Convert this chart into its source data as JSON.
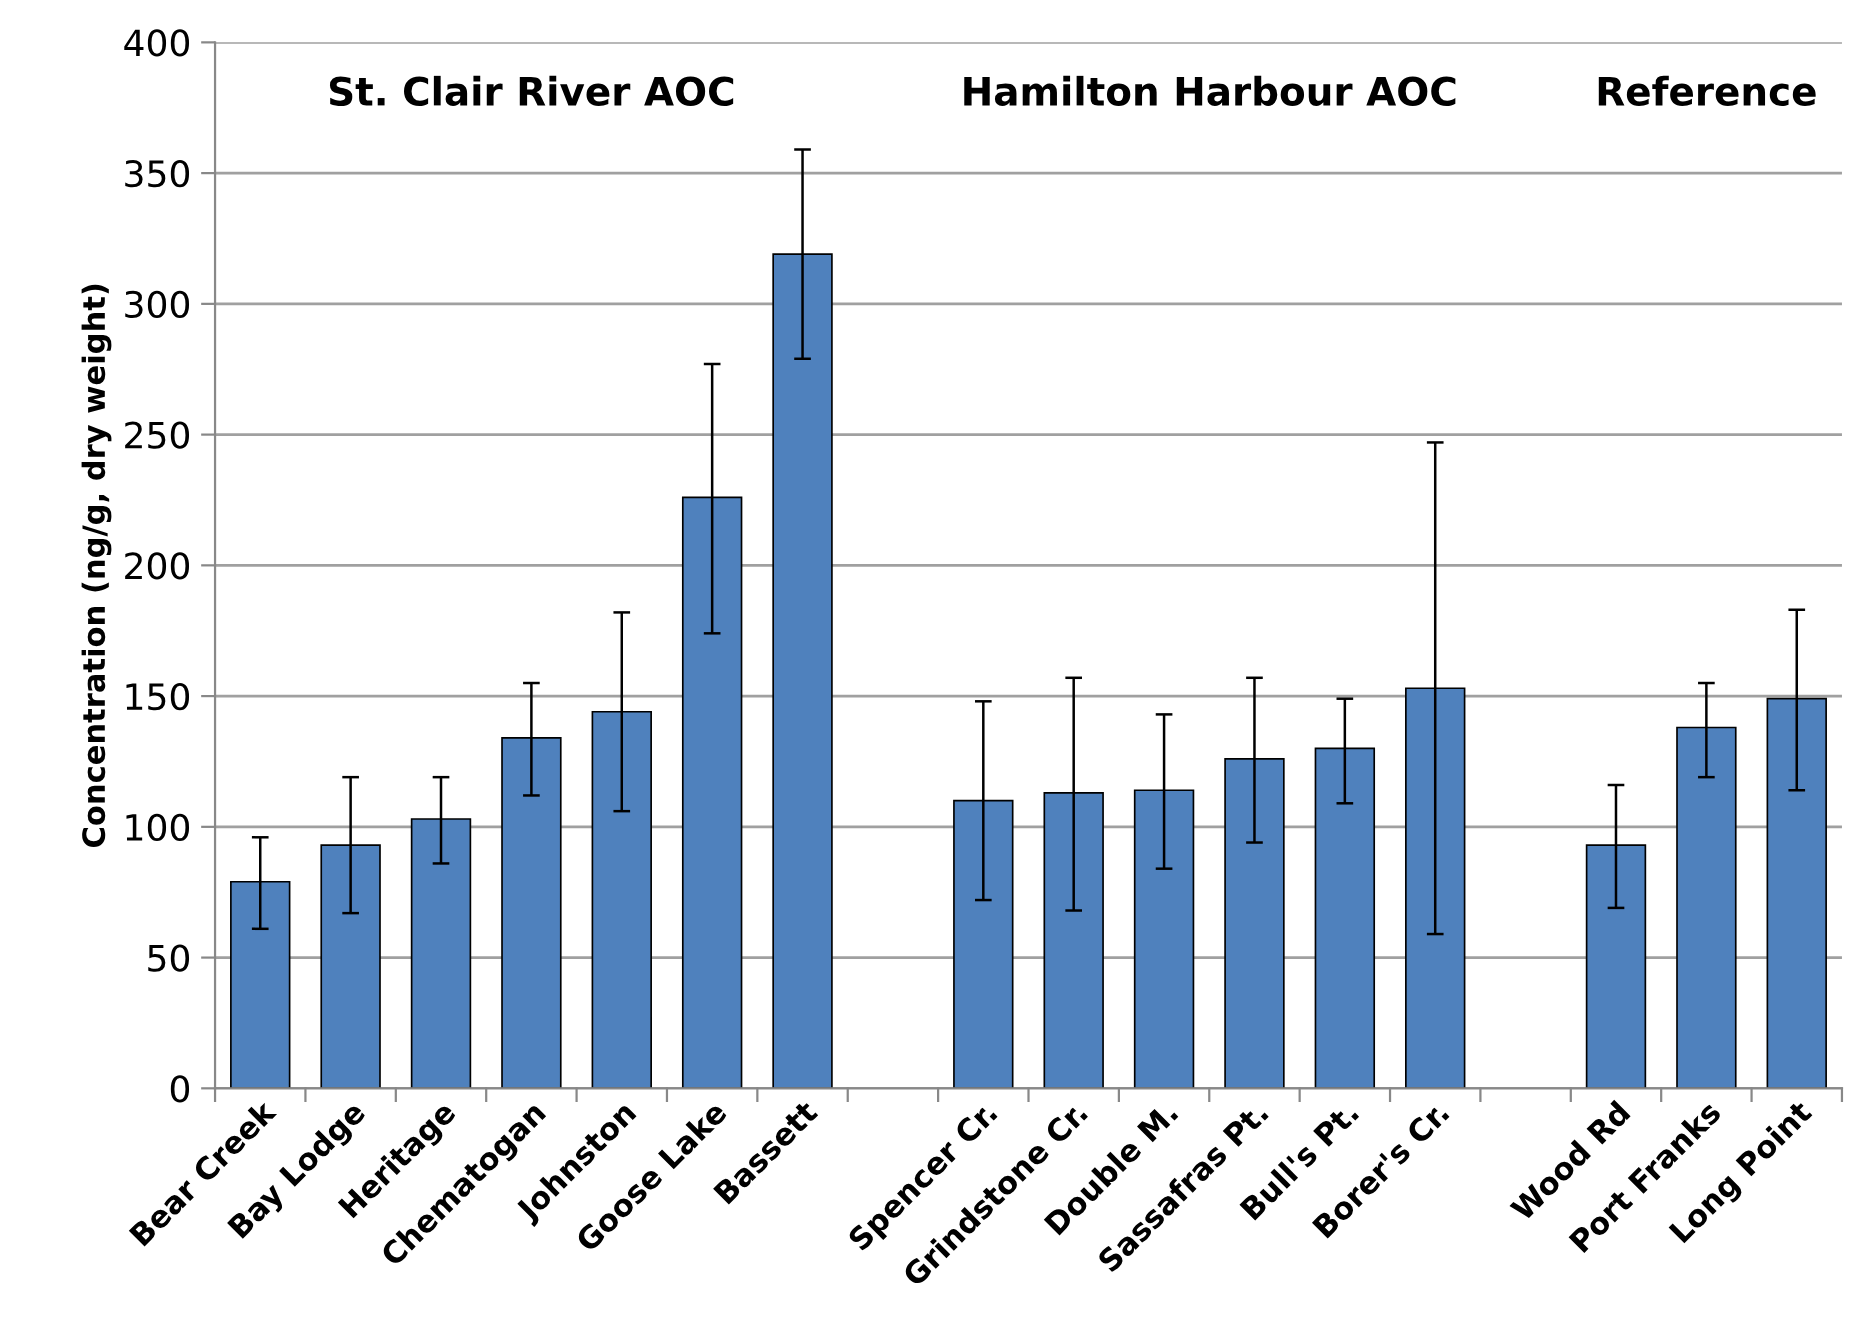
{
  "chart_data": {
    "type": "bar",
    "ylabel": "Concentration (ng/g, dry weight)",
    "annotations": [
      "St. Clair River AOC",
      "Hamilton Harbour AOC",
      "Reference"
    ],
    "categories": [
      "Bear Creek",
      "Bay Lodge",
      "Heritage",
      "Chematogan",
      "Johnston",
      "Goose Lake",
      "Bassett",
      null,
      "Spencer Cr.",
      "Grindstone Cr.",
      "Double M.",
      "Sassafras Pt.",
      "Bull's Pt.",
      "Borer's Cr.",
      null,
      "Wood Rd",
      "Port Franks",
      "Long Point"
    ],
    "values": [
      79,
      93,
      103,
      134,
      144,
      226,
      319,
      null,
      110,
      113,
      114,
      126,
      130,
      153,
      null,
      93,
      138,
      149
    ],
    "errors": [
      [
        61,
        96
      ],
      [
        67,
        119
      ],
      [
        86,
        119
      ],
      [
        112,
        155
      ],
      [
        106,
        182
      ],
      [
        174,
        277
      ],
      [
        279,
        359
      ],
      null,
      [
        72,
        148
      ],
      [
        68,
        157
      ],
      [
        84,
        143
      ],
      [
        94,
        157
      ],
      [
        109,
        149
      ],
      [
        59,
        247
      ],
      null,
      [
        69,
        116
      ],
      [
        119,
        155
      ],
      [
        114,
        183
      ]
    ],
    "color": "#4f81bd",
    "ylim": [
      0,
      400
    ],
    "yticks": [
      0,
      50,
      100,
      150,
      200,
      250,
      300,
      350,
      400
    ],
    "grid": "y",
    "legend": false
  }
}
